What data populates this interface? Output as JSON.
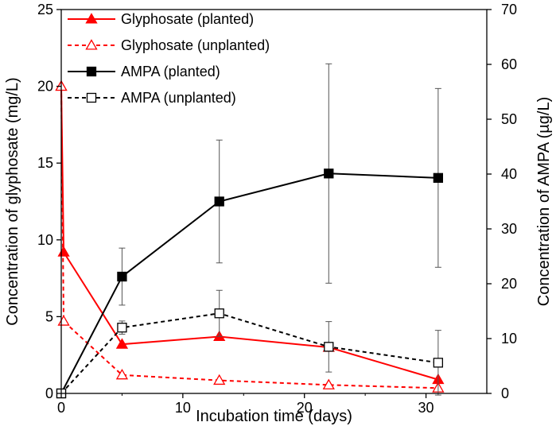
{
  "chart_data": {
    "type": "line",
    "xlabel": "Incubation time (days)",
    "ylabel_left": "Concentration of glyphosate (mg/L)",
    "ylabel_right": "Concentration of AMPA (µg/L)",
    "xlim": [
      0,
      35
    ],
    "ylim_left": [
      0,
      25
    ],
    "ylim_right": [
      0,
      70
    ],
    "xticks": [
      0,
      10,
      20,
      30
    ],
    "yticks_left": [
      0,
      5,
      10,
      15,
      20,
      25
    ],
    "yticks_right": [
      0,
      10,
      20,
      30,
      40,
      50,
      60,
      70
    ],
    "grid": false,
    "legend_position": "top-left",
    "series": [
      {
        "name": "Glyphosate (planted)",
        "axis": "left",
        "color": "#ff0000",
        "line": "solid",
        "marker": "filled-triangle",
        "x": [
          0,
          0.2,
          5,
          13,
          22,
          31
        ],
        "y": [
          20,
          9.2,
          3.2,
          3.7,
          3.0,
          0.9
        ]
      },
      {
        "name": "Glyphosate (unplanted)",
        "axis": "left",
        "color": "#ff0000",
        "line": "dashed",
        "marker": "open-triangle",
        "x": [
          0,
          0.2,
          5,
          13,
          22,
          31
        ],
        "y": [
          20,
          4.7,
          1.2,
          0.85,
          0.55,
          0.35
        ]
      },
      {
        "name": "AMPA (planted)",
        "axis": "right",
        "color": "#000000",
        "line": "solid",
        "marker": "filled-square",
        "x": [
          0,
          5,
          13,
          22,
          31
        ],
        "y": [
          0,
          21.3,
          35.0,
          40.1,
          39.3
        ],
        "error": [
          0,
          5.2,
          11.2,
          20.0,
          16.3
        ]
      },
      {
        "name": "AMPA (unplanted)",
        "axis": "right",
        "color": "#000000",
        "line": "dashed",
        "marker": "open-square",
        "x": [
          0,
          5,
          13,
          22,
          31
        ],
        "y": [
          0,
          12.0,
          14.6,
          8.5,
          5.6
        ],
        "error": [
          0,
          1.2,
          4.2,
          4.6,
          5.9
        ]
      }
    ]
  }
}
